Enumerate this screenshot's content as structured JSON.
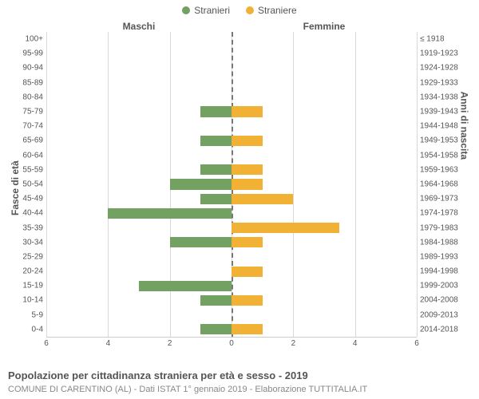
{
  "type": "population-pyramid",
  "legend": {
    "male": {
      "label": "Stranieri",
      "color": "#72a162"
    },
    "female": {
      "label": "Straniere",
      "color": "#f0b135"
    }
  },
  "column_titles": {
    "left": "Maschi",
    "right": "Femmine"
  },
  "yaxis_left_title": "Fasce di età",
  "yaxis_right_title": "Anni di nascita",
  "x_axis": {
    "min": -6,
    "max": 6,
    "ticks": [
      6,
      4,
      2,
      0,
      2,
      4,
      6
    ],
    "tick_positions_pct": [
      0,
      16.67,
      33.33,
      50,
      66.67,
      83.33,
      100
    ]
  },
  "background_color": "#ffffff",
  "gridline_color": "#d9d9d9",
  "center_line_color": "#777777",
  "bar_height_pct": 72,
  "rows": [
    {
      "age": "100+",
      "birth": "≤ 1918",
      "m": 0,
      "f": 0
    },
    {
      "age": "95-99",
      "birth": "1919-1923",
      "m": 0,
      "f": 0
    },
    {
      "age": "90-94",
      "birth": "1924-1928",
      "m": 0,
      "f": 0
    },
    {
      "age": "85-89",
      "birth": "1929-1933",
      "m": 0,
      "f": 0
    },
    {
      "age": "80-84",
      "birth": "1934-1938",
      "m": 0,
      "f": 0
    },
    {
      "age": "75-79",
      "birth": "1939-1943",
      "m": 1,
      "f": 1
    },
    {
      "age": "70-74",
      "birth": "1944-1948",
      "m": 0,
      "f": 0
    },
    {
      "age": "65-69",
      "birth": "1949-1953",
      "m": 1,
      "f": 1
    },
    {
      "age": "60-64",
      "birth": "1954-1958",
      "m": 0,
      "f": 0
    },
    {
      "age": "55-59",
      "birth": "1959-1963",
      "m": 1,
      "f": 1
    },
    {
      "age": "50-54",
      "birth": "1964-1968",
      "m": 2,
      "f": 1
    },
    {
      "age": "45-49",
      "birth": "1969-1973",
      "m": 1,
      "f": 2
    },
    {
      "age": "40-44",
      "birth": "1974-1978",
      "m": 4,
      "f": 0
    },
    {
      "age": "35-39",
      "birth": "1979-1983",
      "m": 0,
      "f": 3.5
    },
    {
      "age": "30-34",
      "birth": "1984-1988",
      "m": 2,
      "f": 1
    },
    {
      "age": "25-29",
      "birth": "1989-1993",
      "m": 0,
      "f": 0
    },
    {
      "age": "20-24",
      "birth": "1994-1998",
      "m": 0,
      "f": 1
    },
    {
      "age": "15-19",
      "birth": "1999-2003",
      "m": 3,
      "f": 0
    },
    {
      "age": "10-14",
      "birth": "2004-2008",
      "m": 1,
      "f": 1
    },
    {
      "age": "5-9",
      "birth": "2009-2013",
      "m": 0,
      "f": 0
    },
    {
      "age": "0-4",
      "birth": "2014-2018",
      "m": 1,
      "f": 1
    }
  ],
  "caption_title": "Popolazione per cittadinanza straniera per età e sesso - 2019",
  "caption_sub": "COMUNE DI CARENTINO (AL) - Dati ISTAT 1° gennaio 2019 - Elaborazione TUTTITALIA.IT",
  "typography": {
    "tick_fontsize": 10,
    "title_fontsize": 13,
    "subtitle_fontsize": 11,
    "axis_title_fontsize": 12
  }
}
